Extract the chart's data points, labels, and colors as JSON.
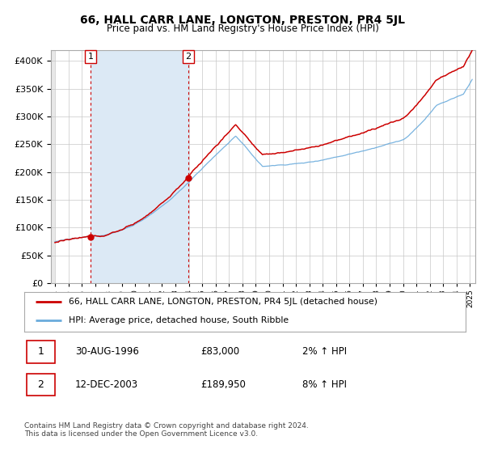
{
  "title": "66, HALL CARR LANE, LONGTON, PRESTON, PR4 5JL",
  "subtitle": "Price paid vs. HM Land Registry's House Price Index (HPI)",
  "legend_line1": "66, HALL CARR LANE, LONGTON, PRESTON, PR4 5JL (detached house)",
  "legend_line2": "HPI: Average price, detached house, South Ribble",
  "sale1_date": "30-AUG-1996",
  "sale1_price": "£83,000",
  "sale1_hpi": "2% ↑ HPI",
  "sale2_date": "12-DEC-2003",
  "sale2_price": "£189,950",
  "sale2_hpi": "8% ↑ HPI",
  "footer": "Contains HM Land Registry data © Crown copyright and database right 2024.\nThis data is licensed under the Open Government Licence v3.0.",
  "hpi_color": "#6aabdc",
  "price_color": "#cc0000",
  "dot_color": "#cc0000",
  "sale_marker_color": "#cc0000",
  "bg_color": "#ffffff",
  "grid_color": "#c8c8c8",
  "shade_color": "#dce9f5",
  "ylim": [
    0,
    420000
  ],
  "yticks": [
    0,
    50000,
    100000,
    150000,
    200000,
    250000,
    300000,
    350000,
    400000
  ],
  "sale1_year": 1996.67,
  "sale2_year": 2003.95,
  "sale1_value": 83000,
  "sale2_value": 189950
}
